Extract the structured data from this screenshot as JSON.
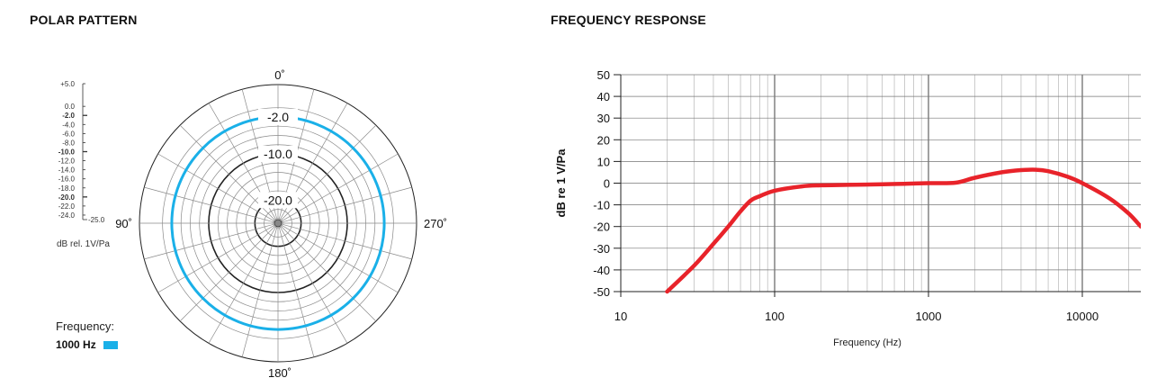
{
  "chart_data": [
    {
      "type": "polar",
      "title": "POLAR PATTERN",
      "angle_labels": [
        "0˚",
        "90˚",
        "180˚",
        "270˚"
      ],
      "ring_labels": [
        {
          "text": "-2.0",
          "db": -2.0
        },
        {
          "text": "-10.0",
          "db": -10.0
        },
        {
          "text": "-20.0",
          "db": -20.0
        }
      ],
      "scale_min": -25,
      "scale_max": 5,
      "ring_values": [
        5,
        0,
        -2,
        -4,
        -6,
        -8,
        -10,
        -12,
        -14,
        -16,
        -18,
        -20,
        -22,
        -24,
        -25
      ],
      "bold_rings": [
        -2,
        -10,
        -20
      ],
      "spoke_step_deg": 15,
      "series": [
        {
          "name": "1000 Hz",
          "color": "#1ab0e8",
          "level_db": -2.0,
          "pattern": "omnidirectional"
        }
      ],
      "scale_ticks": [
        {
          "text": "+5.0",
          "db": 5,
          "bold": false
        },
        {
          "text": "0.0",
          "db": 0,
          "bold": false
        },
        {
          "text": "-2.0",
          "db": -2,
          "bold": true
        },
        {
          "text": "-4.0",
          "db": -4,
          "bold": false
        },
        {
          "text": "-6.0",
          "db": -6,
          "bold": false
        },
        {
          "text": "-8.0",
          "db": -8,
          "bold": false
        },
        {
          "text": "-10.0",
          "db": -10,
          "bold": true
        },
        {
          "text": "-12.0",
          "db": -12,
          "bold": false
        },
        {
          "text": "-14.0",
          "db": -14,
          "bold": false
        },
        {
          "text": "-16.0",
          "db": -16,
          "bold": false
        },
        {
          "text": "-18.0",
          "db": -18,
          "bold": false
        },
        {
          "text": "-20.0",
          "db": -20,
          "bold": true
        },
        {
          "text": "-22.0",
          "db": -22,
          "bold": false
        },
        {
          "text": "-24.0",
          "db": -24,
          "bold": false
        },
        {
          "text": "-25.0",
          "db": -25,
          "bold": false
        }
      ],
      "scale_unit": "dB rel. 1V/Pa",
      "legend_title": "Frequency:"
    },
    {
      "type": "line",
      "title": "FREQUENCY RESPONSE",
      "xlabel": "Frequency (Hz)",
      "ylabel": "dB re 1 V/Pa",
      "xscale": "log",
      "xlim": [
        10,
        24000
      ],
      "ylim": [
        -50,
        50
      ],
      "xticks": [
        10,
        100,
        1000,
        10000
      ],
      "yticks": [
        50,
        40,
        30,
        20,
        10,
        0,
        -10,
        -20,
        -30,
        -40,
        -50
      ],
      "grid": true,
      "series": [
        {
          "color": "#e8232a",
          "x": [
            20,
            30,
            40,
            50,
            60,
            70,
            80,
            100,
            150,
            200,
            300,
            500,
            700,
            1000,
            1500,
            2000,
            3000,
            4000,
            5000,
            6000,
            8000,
            10000,
            15000,
            20000,
            24000
          ],
          "y": [
            -50,
            -38,
            -28,
            -20,
            -13,
            -8,
            -6,
            -3.5,
            -1.5,
            -1,
            -0.8,
            -0.5,
            -0.3,
            0,
            0.2,
            2.5,
            5,
            6,
            6.2,
            5.5,
            3,
            0,
            -7,
            -14,
            -20
          ]
        }
      ]
    }
  ]
}
